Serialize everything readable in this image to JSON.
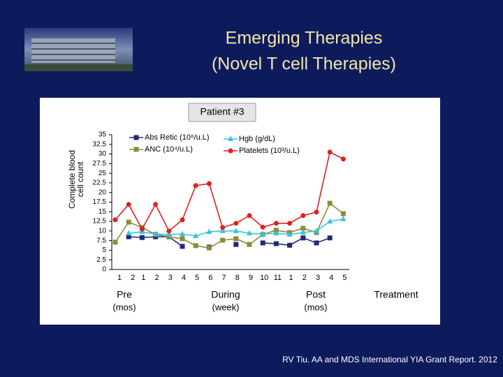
{
  "chart_data": {
    "type": "line",
    "title": [
      "Emerging Therapies",
      "(Novel T cell Therapies)"
    ],
    "subtitle": "Patient #3",
    "ylabel": [
      "Complete blood",
      "cell count"
    ],
    "categories": [
      "1",
      "2",
      "1",
      "2",
      "3",
      "4",
      "5",
      "6",
      "7",
      "8",
      "9",
      "10",
      "11",
      "1",
      "2",
      "3",
      "4",
      "5"
    ],
    "groups": [
      {
        "label": "Pre",
        "sub": "(mos)"
      },
      {
        "label": "During",
        "sub": "(week)"
      },
      {
        "label": "Post",
        "sub": "(mos)"
      },
      {
        "label": "Treatment"
      }
    ],
    "ylim": [
      0,
      35
    ],
    "yticks": [
      0,
      2.5,
      5,
      7.5,
      10,
      12.5,
      15,
      17.5,
      20,
      22.5,
      25,
      27.5,
      30,
      32.5,
      35
    ],
    "legend": "top",
    "series": [
      {
        "name": "Abs Retic (10⁶/u.L)",
        "color": "#1f2a78",
        "marker": "square",
        "values": [
          null,
          8.5,
          8.3,
          8.5,
          8.5,
          6,
          null,
          5.8,
          null,
          6.5,
          null,
          6.9,
          6.7,
          6.3,
          8.2,
          6.9,
          8.2,
          null
        ]
      },
      {
        "name": "ANC (10⁴/u.L)",
        "color": "#8c8c3a",
        "marker": "square",
        "values": [
          7.1,
          12.3,
          10.9,
          9.1,
          8.5,
          8,
          6.2,
          5.6,
          7.6,
          8,
          6.5,
          9.1,
          10.2,
          9.6,
          10.7,
          9.6,
          17.2,
          14.5
        ]
      },
      {
        "name": "Hgb (g/dL)",
        "color": "#33c6dc",
        "marker": "triangle",
        "values": [
          null,
          9.4,
          9.8,
          9.2,
          9.1,
          9.2,
          8.7,
          9.8,
          10,
          10,
          9.4,
          9.2,
          9.4,
          9.1,
          9.6,
          10,
          12.5,
          13.1
        ]
      },
      {
        "name": "Platelets (10³/u.L)",
        "color": "#e02020",
        "marker": "circle",
        "values": [
          12.9,
          16.9,
          10.5,
          16.9,
          10,
          12.9,
          21.8,
          22.3,
          10.9,
          12,
          14,
          11,
          12,
          12,
          14,
          14.9,
          30.5,
          28.7
        ]
      }
    ],
    "source": "RV Tiu. AA and MDS International YIA Grant Report. 2012"
  }
}
